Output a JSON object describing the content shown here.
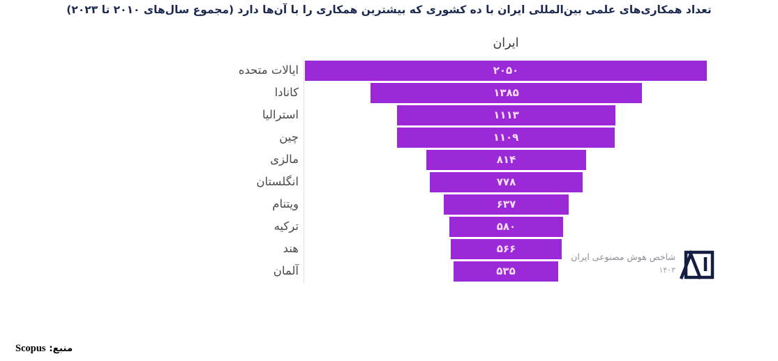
{
  "page": {
    "title": "تعداد همکاری‌های علمی بین‌المللی ایران با ده کشوری که بیشترین همکاری را با آن‌ها دارد (مجموع سال‌های ۲۰۱۰ تا ۲۰۲۳)"
  },
  "chart_data": {
    "type": "bar",
    "variant": "centered-funnel",
    "orientation": "horizontal",
    "title": "ایران",
    "categories": [
      "ایالات متحده",
      "کانادا",
      "استرالیا",
      "چین",
      "مالزی",
      "انگلستان",
      "ویتنام",
      "ترکیه",
      "هند",
      "آلمان"
    ],
    "values": [
      2050,
      1385,
      1113,
      1109,
      814,
      778,
      637,
      580,
      566,
      535
    ],
    "value_labels": [
      "۲۰۵۰",
      "۱۳۸۵",
      "۱۱۱۳",
      "۱۱۰۹",
      "۸۱۴",
      "۷۷۸",
      "۶۳۷",
      "۵۸۰",
      "۵۶۶",
      "۵۳۵"
    ],
    "xlim": [
      0,
      2050
    ],
    "grid": false,
    "legend": "none",
    "bar_color": "#9B29D8",
    "value_text_color": "#F9DFF5"
  },
  "branding": {
    "name": "شاخص هوش مصنوعی ایران",
    "year": "۱۴۰۳",
    "logo": "ai-monogram-in-square",
    "logo_color": "#131E42",
    "text_color": "#8F8F97",
    "year_color": "#A2A2AA"
  },
  "footer": {
    "source_label": "منبع:",
    "source_value": "Scopus"
  },
  "colors": {
    "title": "#1B2850",
    "label": "#4A4A4A",
    "axis_line": "#DEDEDE",
    "source": "#000000",
    "background": "#FFFFFF"
  }
}
